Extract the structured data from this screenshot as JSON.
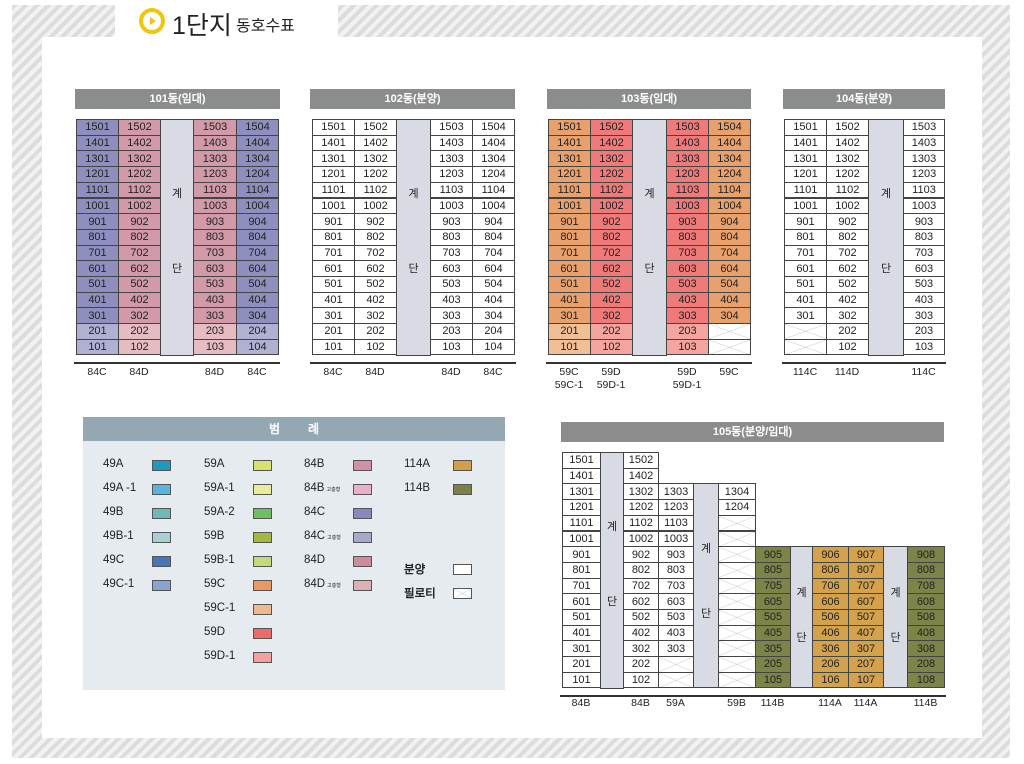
{
  "title": {
    "main": "1단지",
    "sub": "동호수표"
  },
  "stair_label": [
    "계",
    "단"
  ],
  "buildings": [
    {
      "id": "b101",
      "title": "101동(임대)",
      "columns": [
        {
          "kind": "unit",
          "type": "84C",
          "color": "#8f8fbf",
          "low_color": "#b0b0d2",
          "cells": [
            "1501",
            "1401",
            "1301",
            "1201",
            "1101",
            "1001",
            "901",
            "801",
            "701",
            "601",
            "501",
            "401",
            "301",
            "201",
            "101"
          ]
        },
        {
          "kind": "unit",
          "type": "84D",
          "color": "#d29aa8",
          "low_color": "#e6bcc3",
          "cells": [
            "1502",
            "1402",
            "1302",
            "1202",
            "1102",
            "1002",
            "902",
            "802",
            "702",
            "602",
            "502",
            "402",
            "302",
            "202",
            "102"
          ]
        },
        {
          "kind": "stair",
          "floors_from": 15
        },
        {
          "kind": "unit",
          "type": "84D",
          "color": "#d29aa8",
          "low_color": "#e6bcc3",
          "cells": [
            "1503",
            "1403",
            "1303",
            "1203",
            "1103",
            "1003",
            "903",
            "803",
            "703",
            "603",
            "503",
            "403",
            "303",
            "203",
            "103"
          ]
        },
        {
          "kind": "unit",
          "type": "84C",
          "color": "#8f8fbf",
          "low_color": "#b0b0d2",
          "cells": [
            "1504",
            "1404",
            "1304",
            "1204",
            "1104",
            "1004",
            "904",
            "804",
            "704",
            "604",
            "504",
            "404",
            "304",
            "204",
            "104"
          ]
        }
      ]
    },
    {
      "id": "b102",
      "title": "102동(분양)",
      "columns": [
        {
          "kind": "unit",
          "type": "84C",
          "color": "#ffffff",
          "cells": [
            "1501",
            "1401",
            "1301",
            "1201",
            "1101",
            "1001",
            "901",
            "801",
            "701",
            "601",
            "501",
            "401",
            "301",
            "201",
            "101"
          ]
        },
        {
          "kind": "unit",
          "type": "84D",
          "color": "#ffffff",
          "cells": [
            "1502",
            "1402",
            "1302",
            "1202",
            "1102",
            "1002",
            "902",
            "802",
            "702",
            "602",
            "502",
            "402",
            "302",
            "202",
            "102"
          ]
        },
        {
          "kind": "stair",
          "floors_from": 15
        },
        {
          "kind": "unit",
          "type": "84D",
          "color": "#ffffff",
          "cells": [
            "1503",
            "1403",
            "1303",
            "1203",
            "1103",
            "1003",
            "903",
            "803",
            "703",
            "603",
            "503",
            "403",
            "303",
            "203",
            "103"
          ]
        },
        {
          "kind": "unit",
          "type": "84C",
          "color": "#ffffff",
          "cells": [
            "1504",
            "1404",
            "1304",
            "1204",
            "1104",
            "1004",
            "904",
            "804",
            "704",
            "604",
            "504",
            "404",
            "304",
            "204",
            "104"
          ]
        }
      ]
    },
    {
      "id": "b103",
      "title": "103동(임대)",
      "columns": [
        {
          "kind": "unit",
          "type": "59C\n59C-1",
          "color": "#e8a06c",
          "low_color": "#f0bf96",
          "cells": [
            "1501",
            "1401",
            "1301",
            "1201",
            "1101",
            "1001",
            "901",
            "801",
            "701",
            "601",
            "501",
            "401",
            "301",
            "201",
            "101"
          ]
        },
        {
          "kind": "unit",
          "type": "59D\n59D-1",
          "color": "#ef7a7a",
          "low_color": "#f4a5a0",
          "cells": [
            "1502",
            "1402",
            "1302",
            "1202",
            "1102",
            "1002",
            "902",
            "802",
            "702",
            "602",
            "502",
            "402",
            "302",
            "202",
            "102"
          ]
        },
        {
          "kind": "stair",
          "floors_from": 15
        },
        {
          "kind": "unit",
          "type": "59D\n59D-1",
          "color": "#ef7a7a",
          "low_color": "#f4a5a0",
          "cells": [
            "1503",
            "1403",
            "1303",
            "1203",
            "1103",
            "1003",
            "903",
            "803",
            "703",
            "603",
            "503",
            "403",
            "303",
            "203",
            "103"
          ]
        },
        {
          "kind": "unit",
          "type": "59C",
          "color": "#e8a06c",
          "cells": [
            "1504",
            "1404",
            "1304",
            "1204",
            "1104",
            "1004",
            "904",
            "804",
            "704",
            "604",
            "504",
            "404",
            "304",
            "X",
            "X"
          ]
        }
      ]
    },
    {
      "id": "b104",
      "title": "104동(분양)",
      "columns": [
        {
          "kind": "unit",
          "type": "114C",
          "color": "#ffffff",
          "cells": [
            "1501",
            "1401",
            "1301",
            "1201",
            "1101",
            "1001",
            "901",
            "801",
            "701",
            "601",
            "501",
            "401",
            "301",
            "X",
            "X"
          ]
        },
        {
          "kind": "unit",
          "type": "114D",
          "color": "#ffffff",
          "cells": [
            "1502",
            "1402",
            "1302",
            "1202",
            "1102",
            "1002",
            "902",
            "802",
            "702",
            "602",
            "502",
            "402",
            "302",
            "202",
            "102"
          ]
        },
        {
          "kind": "stair",
          "floors_from": 15
        },
        {
          "kind": "unit",
          "type": "114C",
          "color": "#ffffff",
          "cells": [
            "1503",
            "1403",
            "1303",
            "1203",
            "1103",
            "1003",
            "903",
            "803",
            "703",
            "603",
            "503",
            "403",
            "303",
            "203",
            "103"
          ]
        }
      ]
    },
    {
      "id": "b105",
      "title": "105동(분양/임대)",
      "columns": [
        {
          "kind": "unit",
          "type": "84B",
          "color": "#ffffff",
          "cells": [
            "1501",
            "1401",
            "1301",
            "1201",
            "1101",
            "1001",
            "901",
            "801",
            "701",
            "601",
            "501",
            "401",
            "301",
            "201",
            "101"
          ]
        },
        {
          "kind": "stair",
          "floors_from": 15
        },
        {
          "kind": "unit",
          "type": "84B",
          "color": "#ffffff",
          "cells": [
            "1502",
            "1402",
            "1302",
            "1202",
            "1102",
            "1002",
            "902",
            "802",
            "702",
            "602",
            "502",
            "402",
            "302",
            "202",
            "102"
          ]
        },
        {
          "kind": "unit",
          "type": "59A",
          "color": "#ffffff",
          "cells": [
            "",
            "",
            "1303",
            "1203",
            "1103",
            "1003",
            "903",
            "803",
            "703",
            "603",
            "503",
            "403",
            "303",
            "X",
            "X"
          ]
        },
        {
          "kind": "stair",
          "floors_from": 13
        },
        {
          "kind": "unit",
          "type": "59B",
          "color": "#ffffff",
          "cells": [
            "",
            "",
            "1304",
            "1204",
            "X",
            "X",
            "X",
            "X",
            "X",
            "X",
            "X",
            "X",
            "X",
            "X",
            "X"
          ]
        },
        {
          "kind": "unit",
          "type": "114B",
          "color": "#7d8447",
          "cells": [
            "",
            "",
            "",
            "",
            "",
            "",
            "905",
            "805",
            "705",
            "605",
            "505",
            "405",
            "305",
            "205",
            "105"
          ]
        },
        {
          "kind": "stair",
          "floors_from": 9
        },
        {
          "kind": "unit",
          "type": "114A",
          "color": "#d4a24a",
          "cells": [
            "",
            "",
            "",
            "",
            "",
            "",
            "906",
            "806",
            "706",
            "606",
            "506",
            "406",
            "306",
            "206",
            "106"
          ]
        },
        {
          "kind": "unit",
          "type": "114A",
          "color": "#d4a24a",
          "cells": [
            "",
            "",
            "",
            "",
            "",
            "",
            "907",
            "807",
            "707",
            "607",
            "507",
            "407",
            "307",
            "207",
            "107"
          ]
        },
        {
          "kind": "stair",
          "floors_from": 9
        },
        {
          "kind": "unit",
          "type": "114B",
          "color": "#7d8447",
          "cells": [
            "",
            "",
            "",
            "",
            "",
            "",
            "908",
            "808",
            "708",
            "608",
            "508",
            "408",
            "308",
            "208",
            "108"
          ]
        }
      ]
    }
  ],
  "legend": {
    "title": "범례",
    "columns": [
      [
        {
          "label": "49A",
          "color": "#1e9ac0"
        },
        {
          "label": "49A -1",
          "color": "#5ab4e0"
        },
        {
          "label": "49B",
          "color": "#6fb8b8"
        },
        {
          "label": "49B-1",
          "color": "#a8d0d4"
        },
        {
          "label": "49C",
          "color": "#4a74b8"
        },
        {
          "label": "49C-1",
          "color": "#8aa4d0"
        }
      ],
      [
        {
          "label": "59A",
          "color": "#d8e070"
        },
        {
          "label": "59A-1",
          "color": "#e8ec9c"
        },
        {
          "label": "59A-2",
          "color": "#6cc060"
        },
        {
          "label": "59B",
          "color": "#a4b840"
        },
        {
          "label": "59B-1",
          "color": "#c4d87c"
        },
        {
          "label": "59C",
          "color": "#e89860"
        },
        {
          "label": "59C-1",
          "color": "#f0b890"
        },
        {
          "label": "59D",
          "color": "#ee6a6a"
        },
        {
          "label": "59D-1",
          "color": "#f4a0a0"
        }
      ],
      [
        {
          "label": "84B",
          "color": "#d090a8"
        },
        {
          "label": "84B",
          "note": "고층형",
          "color": "#e8b0cc"
        },
        {
          "label": "84C",
          "color": "#8a88b8"
        },
        {
          "label": "84C",
          "note": "고층형",
          "color": "#a8a8cc"
        },
        {
          "label": "84D",
          "color": "#cc8c9c"
        },
        {
          "label": "84D",
          "note": "고층형",
          "color": "#dcb0b4"
        }
      ],
      [
        {
          "label": "114A",
          "color": "#d0a048"
        },
        {
          "label": "114B",
          "color": "#7c8048"
        }
      ]
    ],
    "sale": {
      "label": "분양",
      "color": "#ffffff"
    },
    "piloti": {
      "label": "필로티"
    }
  }
}
